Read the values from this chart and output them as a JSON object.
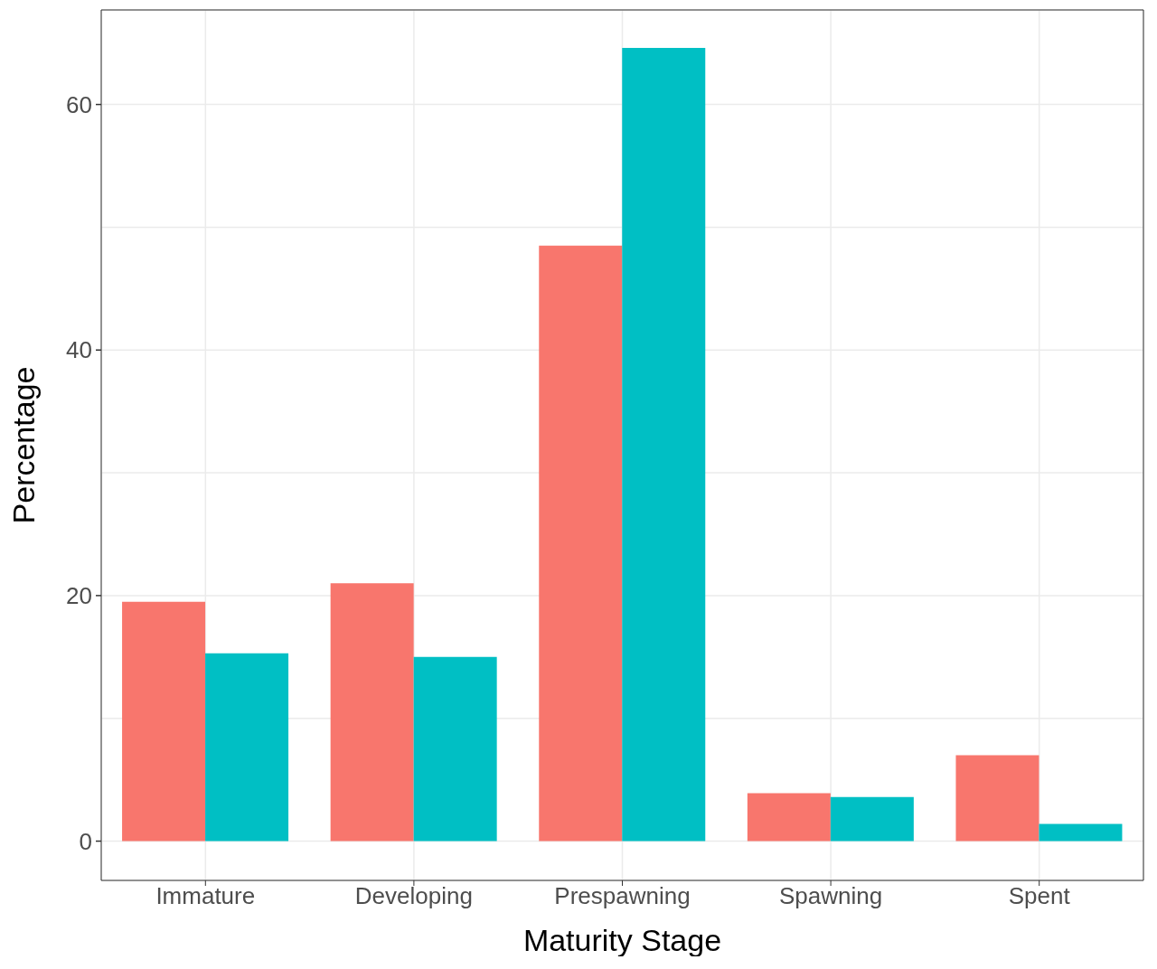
{
  "chart_data": {
    "type": "bar",
    "xlabel": "Maturity Stage",
    "ylabel": "Percentage",
    "categories": [
      "Immature",
      "Developing",
      "Prespawning",
      "Spawning",
      "Spent"
    ],
    "series": [
      {
        "color": "#f8766d",
        "values": [
          19.5,
          21.0,
          48.5,
          3.9,
          7.0
        ]
      },
      {
        "color": "#00bfc4",
        "values": [
          15.3,
          15.0,
          64.6,
          3.6,
          1.4
        ]
      }
    ],
    "ylim": [
      -3.2,
      67.7
    ],
    "yticks": [
      0,
      {
        "value": 10,
        "label": null
      },
      20,
      {
        "value": 30,
        "label": null
      },
      40,
      {
        "value": 50,
        "label": null
      },
      60
    ],
    "grid": true,
    "legend": false
  }
}
